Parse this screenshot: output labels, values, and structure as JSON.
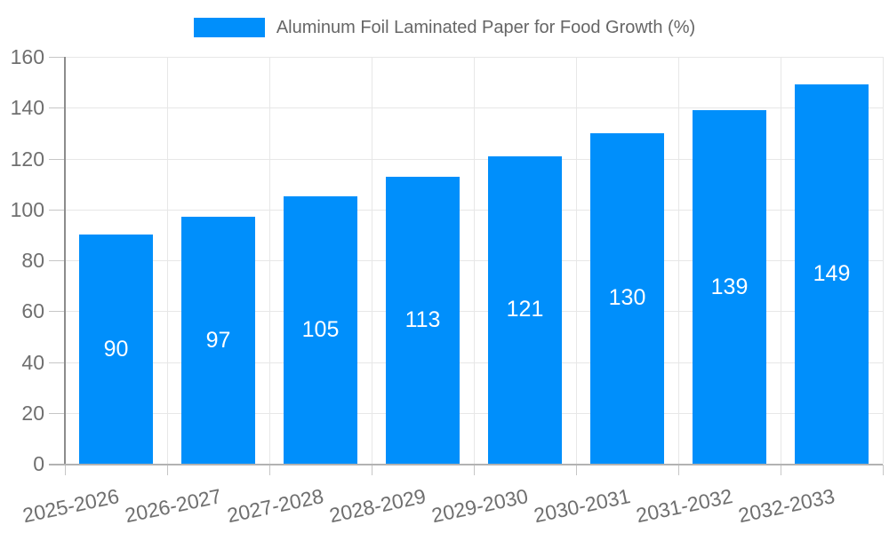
{
  "chart_data": {
    "type": "bar",
    "title": "Aluminum Foil Laminated Paper for Food Growth (%)",
    "categories": [
      "2025-2026",
      "2026-2027",
      "2027-2028",
      "2028-2029",
      "2029-2030",
      "2030-2031",
      "2031-2032",
      "2032-2033"
    ],
    "values": [
      90,
      97,
      105,
      113,
      121,
      130,
      139,
      149
    ],
    "xlabel": "",
    "ylabel": "",
    "ylim": [
      0,
      160
    ],
    "ytick_step": 20,
    "ytick_labels": [
      "0",
      "20",
      "40",
      "60",
      "80",
      "100",
      "120",
      "140",
      "160"
    ],
    "grid": true,
    "legend_position": "top",
    "x_label_rotation_deg": -12,
    "colors": {
      "bar": "#008ffb",
      "value_label": "#ffffff",
      "axis_label": "#6f6f6f",
      "legend_text": "#666666",
      "gridline": "#e7e7e7",
      "y_axis_line": "#8c8c8c",
      "x_axis_line": "#b2b2b2"
    }
  }
}
